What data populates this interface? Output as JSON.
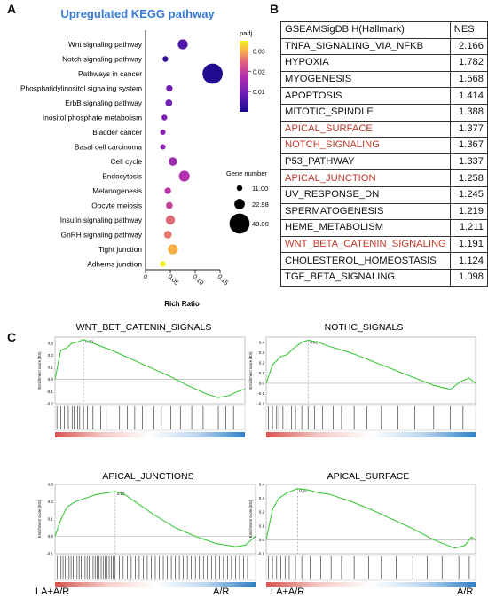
{
  "panels": {
    "a": "A",
    "b": "B",
    "c": "C"
  },
  "chart_data": [
    {
      "type": "scatter",
      "title": "Upregulated KEGG pathway",
      "xlabel": "Rich Ratio",
      "ylabel": "",
      "xlim": [
        0,
        0.15
      ],
      "xticks": [
        "0",
        "0.05",
        "0.10",
        "0.15"
      ],
      "categories": [
        "Wnt signaling pathway",
        "Notch signaling pathway",
        "Pathways in cancer",
        "Phosphatidylinositol signaling system",
        "ErbB signaling pathway",
        "Inositol phosphate metabolism",
        "Bladder cancer",
        "Basal cell carcinoma",
        "Cell cycle",
        "Endocytosis",
        "Melanogenesis",
        "Oocyte meiosis",
        "Insulin signaling pathway",
        "GnRH signaling pathway",
        "Tight junction",
        "Adherns junction"
      ],
      "values": [
        0.075,
        0.04,
        0.135,
        0.048,
        0.047,
        0.038,
        0.035,
        0.035,
        0.055,
        0.078,
        0.045,
        0.048,
        0.05,
        0.045,
        0.055,
        0.035
      ],
      "padj": [
        0.005,
        0.002,
        0.0005,
        0.008,
        0.008,
        0.009,
        0.01,
        0.01,
        0.012,
        0.014,
        0.015,
        0.017,
        0.022,
        0.023,
        0.028,
        0.035
      ],
      "gene_number": [
        22,
        11,
        48,
        13,
        14,
        11,
        10,
        10,
        18,
        24,
        13,
        14,
        20,
        16,
        22,
        11
      ],
      "color_legend": {
        "title": "padj",
        "ticks": [
          "0.03",
          "0.02",
          "0.01"
        ],
        "range": [
          0.0,
          0.035
        ],
        "colors": [
          "#1a0a8c",
          "#6a1fb4",
          "#b32fae",
          "#e0607e",
          "#f5b04a",
          "#f4f01e"
        ]
      },
      "size_legend": {
        "title": "Gene number",
        "labels": [
          "11.00",
          "22.98",
          "48.00"
        ],
        "values": [
          11,
          22.98,
          48
        ]
      }
    },
    {
      "type": "table",
      "columns": [
        "GSEAMSigDB H(Hallmark)",
        "NES"
      ],
      "rows": [
        {
          "name": "TNFA_SIGNALING_VIA_NFKB",
          "nes": "2.166",
          "highlight": false
        },
        {
          "name": "HYPOXIA",
          "nes": "1.782",
          "highlight": false
        },
        {
          "name": "MYOGENESIS",
          "nes": "1.568",
          "highlight": false
        },
        {
          "name": "APOPTOSIS",
          "nes": "1.414",
          "highlight": false
        },
        {
          "name": "MITOTIC_SPINDLE",
          "nes": "1.388",
          "highlight": false
        },
        {
          "name": "APICAL_SURFACE",
          "nes": "1.377",
          "highlight": true
        },
        {
          "name": "NOTCH_SIGNALING",
          "nes": "1.367",
          "highlight": true
        },
        {
          "name": "P53_PATHWAY",
          "nes": "1.337",
          "highlight": false
        },
        {
          "name": "APICAL_JUNCTION",
          "nes": "1.258",
          "highlight": true
        },
        {
          "name": "UV_RESPONSE_DN",
          "nes": "1.245",
          "highlight": false
        },
        {
          "name": "SPERMATOGENESIS",
          "nes": "1.219",
          "highlight": false
        },
        {
          "name": "HEME_METABOLISM",
          "nes": "1.211",
          "highlight": false
        },
        {
          "name": "WNT_BETA_CATENIN_SIGNALING",
          "nes": "1.191",
          "highlight": true
        },
        {
          "name": "CHOLESTEROL_HOMEOSTASIS",
          "nes": "1.124",
          "highlight": false
        },
        {
          "name": "TGF_BETA_SIGNALING",
          "nes": "1.098",
          "highlight": false
        }
      ],
      "highlight_color": "#c0392b"
    },
    {
      "type": "line",
      "title": "WNT_BET_CATENIN_SIGNALS",
      "ylabel": "Enrichment score (ES)",
      "ylim": [
        -0.2,
        0.35
      ],
      "yticks": [
        "0.3",
        "0.2",
        "0.1",
        "0.0",
        "-0.1",
        "-0.2"
      ],
      "peak_label": "0.33",
      "x": [
        0,
        0.03,
        0.06,
        0.09,
        0.12,
        0.15,
        0.2,
        0.3,
        0.4,
        0.5,
        0.6,
        0.7,
        0.8,
        0.86,
        0.92,
        0.96,
        1.0
      ],
      "y": [
        0,
        0.24,
        0.26,
        0.3,
        0.31,
        0.33,
        0.3,
        0.24,
        0.17,
        0.1,
        0.03,
        -0.05,
        -0.12,
        -0.15,
        -0.13,
        -0.1,
        -0.08
      ],
      "hits": [
        0.01,
        0.02,
        0.03,
        0.05,
        0.07,
        0.09,
        0.1,
        0.12,
        0.13,
        0.15,
        0.17,
        0.2,
        0.24,
        0.27,
        0.31,
        0.34,
        0.38,
        0.42,
        0.46,
        0.52,
        0.56,
        0.61,
        0.66,
        0.72,
        0.78,
        0.86,
        0.9,
        0.94
      ]
    },
    {
      "type": "line",
      "title": "NOTHC_SIGNALS",
      "ylabel": "Enrichment score (ES)",
      "ylim": [
        -0.2,
        0.45
      ],
      "yticks": [
        "0.4",
        "0.3",
        "0.2",
        "0.1",
        "0.0",
        "-0.1",
        "-0.2"
      ],
      "peak_label": "0.42",
      "x": [
        0,
        0.03,
        0.07,
        0.1,
        0.13,
        0.17,
        0.2,
        0.25,
        0.3,
        0.4,
        0.5,
        0.6,
        0.7,
        0.8,
        0.88,
        0.93,
        0.97,
        1.0
      ],
      "y": [
        0,
        0.18,
        0.26,
        0.28,
        0.34,
        0.4,
        0.42,
        0.4,
        0.36,
        0.3,
        0.22,
        0.14,
        0.06,
        -0.02,
        -0.06,
        0.02,
        0.05,
        0.0
      ],
      "hits": [
        0.01,
        0.03,
        0.05,
        0.06,
        0.08,
        0.1,
        0.12,
        0.14,
        0.17,
        0.2,
        0.23,
        0.27,
        0.32,
        0.36,
        0.42,
        0.48,
        0.55,
        0.63,
        0.71,
        0.8,
        0.88,
        0.94
      ]
    },
    {
      "type": "line",
      "title": "APICAL_JUNCTIONS",
      "ylabel": "Enrichment score (ES)",
      "ylim": [
        -0.1,
        0.3
      ],
      "yticks": [
        "0.3",
        "0.2",
        "0.1",
        "0.0",
        "-0.1"
      ],
      "peak_label": "0.26",
      "x": [
        0,
        0.03,
        0.06,
        0.1,
        0.15,
        0.2,
        0.25,
        0.3,
        0.35,
        0.4,
        0.5,
        0.6,
        0.7,
        0.8,
        0.9,
        0.95,
        0.97,
        1.0
      ],
      "y": [
        0,
        0.1,
        0.17,
        0.2,
        0.22,
        0.24,
        0.25,
        0.26,
        0.24,
        0.2,
        0.12,
        0.05,
        0.0,
        -0.04,
        -0.06,
        -0.05,
        -0.03,
        0.0
      ],
      "hits": [
        0.01,
        0.02,
        0.03,
        0.04,
        0.05,
        0.06,
        0.07,
        0.08,
        0.09,
        0.1,
        0.11,
        0.12,
        0.13,
        0.14,
        0.15,
        0.16,
        0.17,
        0.18,
        0.19,
        0.2,
        0.21,
        0.22,
        0.23,
        0.24,
        0.25,
        0.26,
        0.27,
        0.28,
        0.29,
        0.3,
        0.32,
        0.34,
        0.36,
        0.38,
        0.4,
        0.42,
        0.44,
        0.46,
        0.48,
        0.5,
        0.52,
        0.54,
        0.56,
        0.58,
        0.6,
        0.62,
        0.64,
        0.66,
        0.68,
        0.7,
        0.72,
        0.74,
        0.76,
        0.78,
        0.8,
        0.82,
        0.84,
        0.86,
        0.88,
        0.9,
        0.92,
        0.94,
        0.96
      ]
    },
    {
      "type": "line",
      "title": "APICAL_SURFACE",
      "ylabel": "Enrichment score (ES)",
      "ylim": [
        -0.1,
        0.4
      ],
      "yticks": [
        "0.4",
        "0.3",
        "0.2",
        "0.1",
        "0.0",
        "-0.1"
      ],
      "peak_label": "0.37",
      "x": [
        0,
        0.03,
        0.06,
        0.1,
        0.15,
        0.2,
        0.25,
        0.3,
        0.4,
        0.5,
        0.6,
        0.7,
        0.8,
        0.9,
        0.95,
        0.98,
        1.0
      ],
      "y": [
        0,
        0.22,
        0.3,
        0.34,
        0.37,
        0.36,
        0.34,
        0.33,
        0.28,
        0.22,
        0.15,
        0.08,
        0.0,
        -0.06,
        -0.04,
        0.02,
        0.0
      ],
      "hits": [
        0.01,
        0.03,
        0.05,
        0.07,
        0.09,
        0.11,
        0.14,
        0.17,
        0.21,
        0.26,
        0.31,
        0.36,
        0.42,
        0.49,
        0.55,
        0.62,
        0.7,
        0.77,
        0.84,
        0.92,
        0.97
      ]
    }
  ],
  "gsea_axis": {
    "left": "LA+A/R",
    "right": "A/R"
  }
}
